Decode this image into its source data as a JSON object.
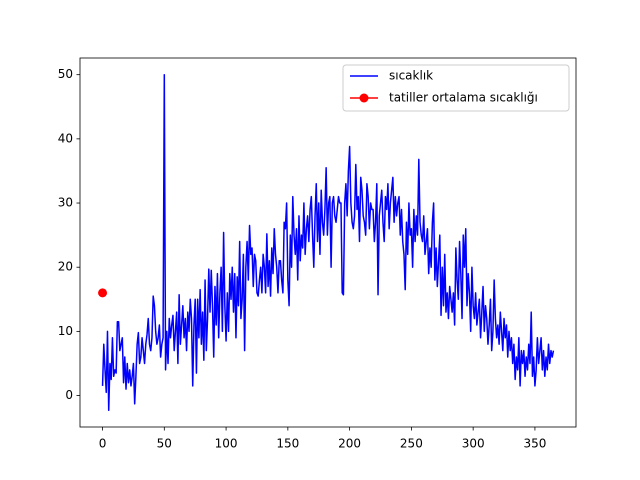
{
  "chart_data": {
    "type": "line",
    "xlim": [
      -18.25,
      383.25
    ],
    "ylim": [
      -4.9,
      52.6
    ],
    "xticks": [
      0,
      50,
      100,
      150,
      200,
      250,
      300,
      350
    ],
    "yticks": [
      0,
      10,
      20,
      30,
      40,
      50
    ],
    "grid": false,
    "legend": "upper right",
    "series": [
      {
        "name": "sıcaklık",
        "color": "#0000ff",
        "marker": false,
        "values": [
          1.5,
          8,
          4,
          0.5,
          10,
          -2.3,
          5,
          2.5,
          9,
          3,
          4,
          3.5,
          11.5,
          11.5,
          7,
          8,
          9,
          2,
          6,
          1,
          5,
          2,
          4,
          1.5,
          3,
          5,
          -1.3,
          3,
          8,
          9.8,
          5,
          6,
          9,
          7,
          5,
          8,
          9.5,
          12,
          8,
          7,
          9,
          15.5,
          14,
          10,
          8,
          9,
          11,
          6,
          8,
          9,
          50,
          4,
          10,
          5,
          12,
          9,
          11,
          12.5,
          7,
          10,
          13,
          5,
          15.7,
          8,
          11,
          14,
          9,
          12,
          7,
          13,
          10,
          15,
          12,
          1.5,
          11,
          15,
          3.5,
          15,
          9,
          16.5,
          8,
          13,
          5.5,
          18,
          7,
          12,
          19.7,
          13,
          19.5,
          14,
          6,
          17,
          11,
          19,
          9,
          16,
          20,
          10,
          25.4,
          14,
          8.5,
          16,
          10,
          19,
          15,
          20,
          13,
          19,
          9,
          18.5,
          14,
          24,
          12,
          15,
          22,
          7,
          20,
          24,
          18,
          26.5,
          22,
          23,
          17,
          22,
          21,
          16,
          15.5,
          18,
          20,
          16,
          22,
          20,
          16,
          25.2,
          17,
          21,
          15.5,
          23,
          19,
          26,
          22,
          20,
          16,
          21,
          21,
          18,
          16,
          27,
          26,
          30,
          18,
          14,
          25,
          20,
          31,
          25,
          22,
          26,
          18,
          28,
          21,
          25,
          23,
          30,
          22,
          26,
          28,
          24,
          29,
          31,
          25,
          20,
          28,
          33,
          24,
          30,
          22,
          32,
          27,
          25,
          29,
          35.5,
          25,
          30,
          31,
          20,
          30,
          31,
          28,
          27,
          29,
          31,
          30,
          30,
          16,
          15.7,
          30,
          33,
          28,
          35,
          38.8,
          30,
          27,
          26,
          28,
          36,
          29,
          31,
          24,
          34,
          32,
          28,
          27,
          25,
          33,
          31,
          26,
          30,
          29,
          29,
          24,
          27,
          33,
          15.7,
          28,
          30,
          32,
          27,
          24,
          31,
          29,
          33,
          26,
          30,
          32,
          34,
          27,
          31,
          28,
          30,
          31,
          25,
          29,
          24,
          22,
          16.5,
          27,
          22,
          30,
          25,
          26,
          20,
          29,
          24,
          28,
          25,
          36.8,
          27,
          25,
          24,
          28,
          22,
          24,
          26,
          19,
          23,
          20,
          27,
          30,
          18,
          23,
          17,
          21,
          25,
          12.5,
          20,
          14,
          22,
          13,
          16,
          12,
          17,
          15,
          13,
          16,
          11,
          23,
          18,
          15,
          24,
          19,
          12,
          25,
          20,
          26,
          14,
          19,
          16,
          10,
          20,
          14,
          12,
          16,
          11,
          13,
          15,
          9,
          13,
          17,
          10,
          14,
          12,
          8,
          11,
          15,
          7,
          10,
          18,
          12,
          9,
          11,
          8,
          13,
          10,
          7,
          12,
          9,
          11,
          6,
          10,
          7,
          9,
          5,
          8,
          2.5,
          6,
          4,
          9,
          1.5,
          7,
          5,
          7,
          3,
          6,
          4,
          8,
          5,
          13,
          3,
          6,
          1.5,
          4,
          9,
          5,
          7,
          9,
          4,
          7,
          3,
          6,
          4,
          8,
          5,
          7,
          6,
          7
        ]
      },
      {
        "name": "tatiller ortalama sıcaklığı",
        "color": "#ff0000",
        "marker": true,
        "x": [
          0
        ],
        "values": [
          16
        ]
      }
    ]
  }
}
